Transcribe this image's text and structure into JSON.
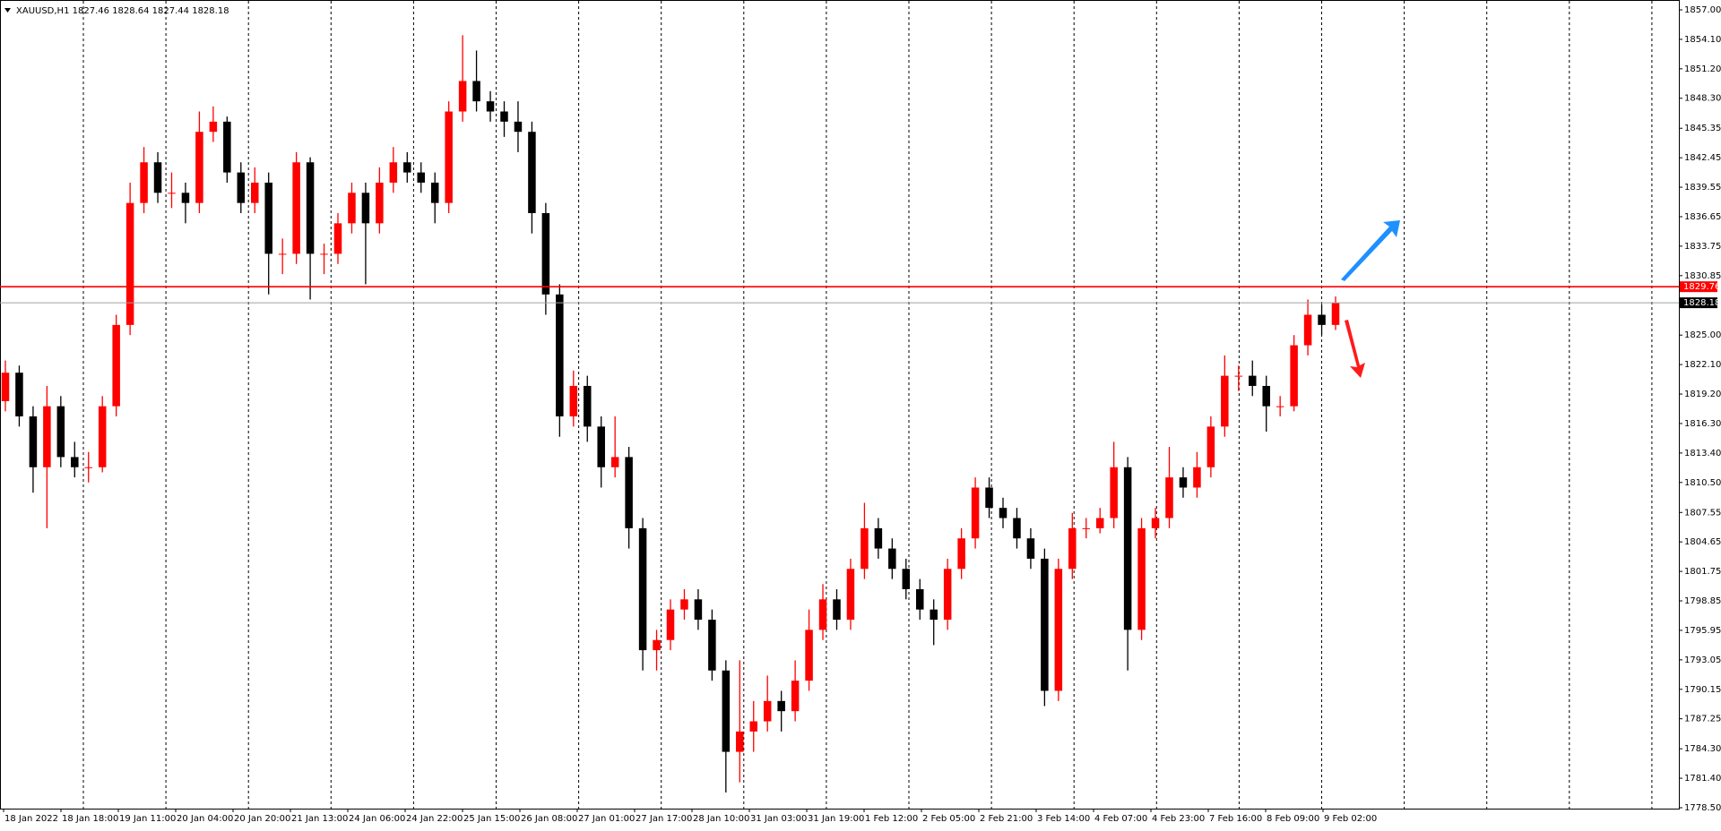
{
  "chart_data": {
    "type": "candlestick",
    "title": "XAUUSD,H1 1827.46 1828.64 1827.44 1828.18",
    "up_color": "#ff0000",
    "down_color": "#000000",
    "ylim": [
      1778.5,
      1857.0
    ],
    "yticks": [
      {
        "value": 1857.0,
        "label": "1857.00"
      },
      {
        "value": 1854.1,
        "label": "1854.10"
      },
      {
        "value": 1851.2,
        "label": "1851.20"
      },
      {
        "value": 1848.3,
        "label": "1848.30"
      },
      {
        "value": 1845.35,
        "label": "1845.35"
      },
      {
        "value": 1842.45,
        "label": "1842.45"
      },
      {
        "value": 1839.55,
        "label": "1839.55"
      },
      {
        "value": 1836.65,
        "label": "1836.65"
      },
      {
        "value": 1833.75,
        "label": "1833.75"
      },
      {
        "value": 1830.85,
        "label": "1830.85"
      },
      {
        "value": 1825.0,
        "label": "1825.00"
      },
      {
        "value": 1822.1,
        "label": "1822.10"
      },
      {
        "value": 1819.2,
        "label": "1819.20"
      },
      {
        "value": 1816.3,
        "label": "1816.30"
      },
      {
        "value": 1813.4,
        "label": "1813.40"
      },
      {
        "value": 1810.5,
        "label": "1810.50"
      },
      {
        "value": 1807.55,
        "label": "1807.55"
      },
      {
        "value": 1804.65,
        "label": "1804.65"
      },
      {
        "value": 1801.75,
        "label": "1801.75"
      },
      {
        "value": 1798.85,
        "label": "1798.85"
      },
      {
        "value": 1795.95,
        "label": "1795.95"
      },
      {
        "value": 1793.05,
        "label": "1793.05"
      },
      {
        "value": 1790.15,
        "label": "1790.15"
      },
      {
        "value": 1787.25,
        "label": "1787.25"
      },
      {
        "value": 1784.3,
        "label": "1784.30"
      },
      {
        "value": 1781.4,
        "label": "1781.40"
      },
      {
        "value": 1778.5,
        "label": "1778.50"
      }
    ],
    "levels": [
      {
        "value": 1829.76,
        "color": "#ff0000"
      },
      {
        "value": 1828.18,
        "color": "#000000"
      }
    ],
    "x_labels": [
      "18 Jan 2022",
      "18 Jan 18:00",
      "19 Jan 11:00",
      "20 Jan 04:00",
      "20 Jan 20:00",
      "21 Jan 13:00",
      "24 Jan 06:00",
      "24 Jan 22:00",
      "25 Jan 15:00",
      "26 Jan 08:00",
      "27 Jan 01:00",
      "27 Jan 17:00",
      "28 Jan 10:00",
      "31 Jan 03:00",
      "31 Jan 19:00",
      "1 Feb 12:00",
      "2 Feb 05:00",
      "2 Feb 21:00",
      "3 Feb 14:00",
      "4 Feb 07:00",
      "4 Feb 23:00",
      "7 Feb 16:00",
      "8 Feb 09:00",
      "9 Feb 02:00"
    ],
    "ohlc": [
      [
        1818.5,
        1822.5,
        1817.5,
        1821.3
      ],
      [
        1821.3,
        1822,
        1816,
        1817
      ],
      [
        1817,
        1818,
        1809.5,
        1812
      ],
      [
        1812,
        1820,
        1806,
        1818
      ],
      [
        1818,
        1819,
        1812,
        1813
      ],
      [
        1813,
        1814.5,
        1811,
        1812
      ],
      [
        1812,
        1813.5,
        1810.5,
        1812
      ],
      [
        1812,
        1819,
        1811.5,
        1818
      ],
      [
        1818,
        1827,
        1817,
        1826
      ],
      [
        1826,
        1840,
        1825,
        1838
      ],
      [
        1838,
        1843.5,
        1837,
        1842
      ],
      [
        1842,
        1843,
        1838,
        1839
      ],
      [
        1839,
        1841,
        1837.5,
        1839
      ],
      [
        1839,
        1840,
        1836,
        1838
      ],
      [
        1838,
        1847,
        1837,
        1845
      ],
      [
        1845,
        1847.5,
        1844,
        1846
      ],
      [
        1846,
        1846.5,
        1840,
        1841
      ],
      [
        1841,
        1842,
        1837,
        1838
      ],
      [
        1838,
        1841.5,
        1837,
        1840
      ],
      [
        1840,
        1841,
        1829,
        1833
      ],
      [
        1833,
        1834.5,
        1831,
        1833
      ],
      [
        1833,
        1843,
        1832,
        1842
      ],
      [
        1842,
        1842.5,
        1828.5,
        1833
      ],
      [
        1833,
        1834,
        1831,
        1833
      ],
      [
        1833,
        1837,
        1832,
        1836
      ],
      [
        1836,
        1840,
        1835,
        1839
      ],
      [
        1839,
        1840,
        1830,
        1836
      ],
      [
        1836,
        1841.5,
        1835,
        1840
      ],
      [
        1840,
        1843.5,
        1839,
        1842
      ],
      [
        1842,
        1843,
        1840,
        1841
      ],
      [
        1841,
        1842,
        1839,
        1840
      ],
      [
        1840,
        1841,
        1836,
        1838
      ],
      [
        1838,
        1848,
        1837,
        1847
      ],
      [
        1847,
        1854.5,
        1846,
        1850
      ],
      [
        1850,
        1853,
        1847,
        1848
      ],
      [
        1848,
        1849,
        1846,
        1847
      ],
      [
        1847,
        1848,
        1844.5,
        1846
      ],
      [
        1846,
        1848,
        1843,
        1845
      ],
      [
        1845,
        1846,
        1835,
        1837
      ],
      [
        1837,
        1838,
        1827,
        1829
      ],
      [
        1829,
        1830,
        1815,
        1817
      ],
      [
        1817,
        1821.5,
        1816,
        1820
      ],
      [
        1820,
        1821,
        1814.5,
        1816
      ],
      [
        1816,
        1817,
        1810,
        1812
      ],
      [
        1812,
        1817,
        1811,
        1813
      ],
      [
        1813,
        1814,
        1804,
        1806
      ],
      [
        1806,
        1807,
        1792,
        1794
      ],
      [
        1794,
        1796,
        1792,
        1795
      ],
      [
        1795,
        1799,
        1794,
        1798
      ],
      [
        1798,
        1800,
        1797,
        1799
      ],
      [
        1799,
        1800,
        1796,
        1797
      ],
      [
        1797,
        1798,
        1791,
        1792
      ],
      [
        1792,
        1793,
        1780,
        1784
      ],
      [
        1784,
        1793,
        1781,
        1786
      ],
      [
        1786,
        1789,
        1784,
        1787
      ],
      [
        1787,
        1791.5,
        1786,
        1789
      ],
      [
        1789,
        1790,
        1786,
        1788
      ],
      [
        1788,
        1793,
        1787,
        1791
      ],
      [
        1791,
        1798,
        1790,
        1796
      ],
      [
        1796,
        1800.5,
        1795,
        1799
      ],
      [
        1799,
        1800,
        1796,
        1797
      ],
      [
        1797,
        1803,
        1796,
        1802
      ],
      [
        1802,
        1808.5,
        1801,
        1806
      ],
      [
        1806,
        1807,
        1803,
        1804
      ],
      [
        1804,
        1805,
        1801,
        1802
      ],
      [
        1802,
        1803,
        1799,
        1800
      ],
      [
        1800,
        1801,
        1797,
        1798
      ],
      [
        1798,
        1799,
        1794.5,
        1797
      ],
      [
        1797,
        1803,
        1796,
        1802
      ],
      [
        1802,
        1806,
        1801,
        1805
      ],
      [
        1805,
        1811,
        1804,
        1810
      ],
      [
        1810,
        1811,
        1807,
        1808
      ],
      [
        1808,
        1809,
        1806,
        1807
      ],
      [
        1807,
        1808,
        1804,
        1805
      ],
      [
        1805,
        1806,
        1802,
        1803
      ],
      [
        1803,
        1804,
        1788.5,
        1790
      ],
      [
        1790,
        1803,
        1789,
        1802
      ],
      [
        1802,
        1807.5,
        1801,
        1806
      ],
      [
        1806,
        1807,
        1805,
        1806
      ],
      [
        1806,
        1808,
        1805.5,
        1807
      ],
      [
        1807,
        1814.5,
        1806,
        1812
      ],
      [
        1812,
        1813,
        1792,
        1796
      ],
      [
        1796,
        1807,
        1795,
        1806
      ],
      [
        1806,
        1808,
        1805,
        1807
      ],
      [
        1807,
        1814,
        1806,
        1811
      ],
      [
        1811,
        1812,
        1809,
        1810
      ],
      [
        1810,
        1813.5,
        1809,
        1812
      ],
      [
        1812,
        1817,
        1811,
        1816
      ],
      [
        1816,
        1823,
        1815,
        1821
      ],
      [
        1821,
        1822,
        1819.5,
        1821
      ],
      [
        1821,
        1822.5,
        1819,
        1820
      ],
      [
        1820,
        1821,
        1815.5,
        1818
      ],
      [
        1818,
        1819,
        1817,
        1818
      ],
      [
        1818,
        1825,
        1817.5,
        1824
      ],
      [
        1824,
        1828.5,
        1823,
        1827
      ],
      [
        1827,
        1828,
        1825,
        1826
      ],
      [
        1826,
        1828.8,
        1825.5,
        1828.18
      ]
    ]
  }
}
